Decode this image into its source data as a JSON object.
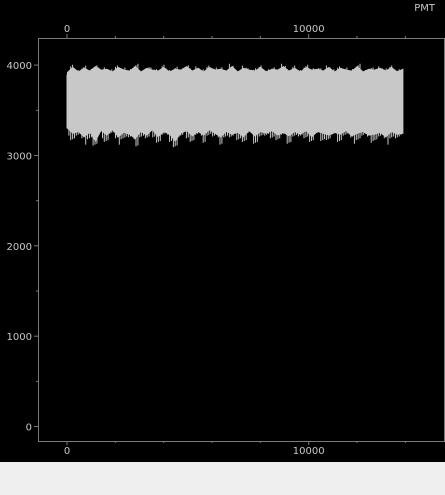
{
  "window": {
    "channel_label": "PMT"
  },
  "colors": {
    "background": "#000000",
    "frame": "#7a7a7a",
    "trace": "#c8c8c8",
    "tick_text": "#c8c8c8",
    "status_strip": "#efefef"
  },
  "chart_data": {
    "type": "area",
    "title": "",
    "xlabel": "",
    "ylabel": "",
    "series": [
      {
        "name": "",
        "x_range": [
          0,
          13900
        ],
        "band_min": [
          3300,
          3240,
          3260,
          3200,
          3250,
          3150,
          3270,
          3220,
          3280,
          3200,
          3250,
          3230,
          3180,
          3260,
          3220,
          3280,
          3200,
          3260,
          3230,
          3150,
          3240,
          3270,
          3210,
          3260,
          3220,
          3280,
          3240,
          3200,
          3260,
          3230,
          3250,
          3200,
          3270,
          3210,
          3260,
          3240,
          3270,
          3220,
          3250,
          3210,
          3260,
          3230,
          3270,
          3200,
          3260,
          3240,
          3220,
          3250,
          3230,
          3270,
          3210,
          3240,
          3260,
          3220,
          3230,
          3250,
          3200,
          3260,
          3230,
          3240
        ],
        "band_max": [
          3920,
          3980,
          3930,
          3970,
          3940,
          3990,
          3950,
          3960,
          3930,
          3980,
          3950,
          3940,
          3990,
          3930,
          3970,
          3950,
          3940,
          3980,
          3930,
          3960,
          3950,
          3990,
          3940,
          3970,
          3930,
          3980,
          3950,
          3960,
          3940,
          3990,
          3930,
          3970,
          3950,
          3940,
          3980,
          3930,
          3960,
          3950,
          3990,
          3940,
          3970,
          3930,
          3980,
          3950,
          3960,
          3940,
          3980,
          3930,
          3970,
          3950,
          3940,
          3990,
          3930,
          3960,
          3950,
          3970,
          3940,
          3980,
          3930,
          3960
        ]
      }
    ],
    "xlim": [
      -1200,
      15600
    ],
    "ylim": [
      -160,
      4300
    ],
    "x_ticks": [
      0,
      10000
    ],
    "x_minor_ticks": [
      2000,
      4000,
      6000,
      8000,
      12000,
      14000
    ],
    "x_tick_labels": [
      "0",
      "10000"
    ],
    "y_ticks": [
      0,
      1000,
      2000,
      3000,
      4000
    ],
    "y_minor_ticks": [
      500,
      1500,
      2500,
      3500
    ],
    "y_tick_labels": [
      "0",
      "1000",
      "2000",
      "3000",
      "4000"
    ],
    "grid": false,
    "legend": "none"
  }
}
